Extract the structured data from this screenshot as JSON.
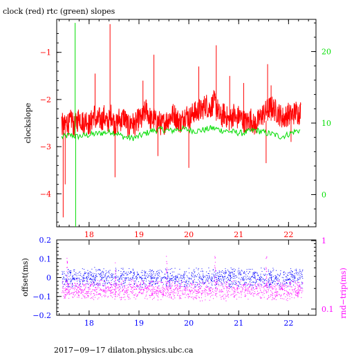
{
  "chart_data": [
    {
      "type": "line",
      "title": "clock (red) rtc (green) slopes",
      "xlabel": "",
      "ylabel": "clockslope",
      "x_ticks": [
        18,
        19,
        20,
        21,
        22
      ],
      "xlim": [
        17.35,
        22.55
      ],
      "ylim": [
        -4.7,
        -0.3
      ],
      "y_ticks": [
        -1,
        -2,
        -3,
        -4
      ],
      "y2lim": [
        -4.5,
        24.5
      ],
      "y2_ticks": [
        0,
        10,
        20
      ],
      "series": [
        {
          "name": "clock",
          "color": "#ff0000",
          "axis": "left",
          "x": [
            17.45,
            17.5,
            17.55,
            17.6,
            17.65,
            17.7,
            17.75,
            17.8,
            17.85,
            17.9,
            17.95,
            18.0,
            18.05,
            18.1,
            18.15,
            18.2,
            18.25,
            18.3,
            18.35,
            18.4,
            18.45,
            18.5,
            18.55,
            18.6,
            18.65,
            18.7,
            18.75,
            18.8,
            18.85,
            18.9,
            18.95,
            19.0,
            19.05,
            19.1,
            19.15,
            19.2,
            19.25,
            19.3,
            19.35,
            19.4,
            19.45,
            19.5,
            19.55,
            19.6,
            19.65,
            19.7,
            19.75,
            19.8,
            19.85,
            19.9,
            19.95,
            20.0,
            20.05,
            20.1,
            20.15,
            20.2,
            20.25,
            20.3,
            20.35,
            20.4,
            20.45,
            20.5,
            20.55,
            20.6,
            20.65,
            20.7,
            20.75,
            20.8,
            20.85,
            20.9,
            20.95,
            21.0,
            21.05,
            21.1,
            21.15,
            21.2,
            21.25,
            21.3,
            21.35,
            21.4,
            21.45,
            21.5,
            21.55,
            21.6,
            21.65,
            21.7,
            21.75,
            21.8,
            21.85,
            21.9,
            21.95,
            22.0,
            22.05,
            22.1,
            22.15,
            22.2,
            22.25
          ],
          "values": [
            -2.5,
            -2.6,
            -2.45,
            -2.55,
            -2.4,
            -2.6,
            -2.5,
            -2.35,
            -2.45,
            -2.5,
            -2.4,
            -2.55,
            -2.45,
            -2.3,
            -2.5,
            -2.4,
            -2.45,
            -2.35,
            -2.5,
            -2.45,
            -2.3,
            -2.5,
            -2.55,
            -2.4,
            -2.45,
            -2.35,
            -2.5,
            -2.6,
            -2.45,
            -2.55,
            -2.5,
            -2.4,
            -2.45,
            -2.3,
            -2.2,
            -2.35,
            -2.45,
            -2.4,
            -2.5,
            -2.45,
            -2.55,
            -2.5,
            -2.45,
            -2.4,
            -2.35,
            -2.3,
            -2.4,
            -2.45,
            -2.5,
            -2.35,
            -2.3,
            -2.4,
            -2.35,
            -2.25,
            -2.3,
            -2.2,
            -2.25,
            -2.15,
            -2.1,
            -2.2,
            -2.15,
            -2.05,
            -2.1,
            -2.3,
            -2.4,
            -2.3,
            -2.35,
            -2.45,
            -2.4,
            -2.3,
            -2.45,
            -2.35,
            -2.4,
            -2.45,
            -2.5,
            -2.45,
            -2.4,
            -2.55,
            -2.5,
            -2.45,
            -2.35,
            -2.3,
            -2.25,
            -2.2,
            -2.15,
            -2.2,
            -2.25,
            -2.3,
            -2.35,
            -2.4,
            -2.35,
            -2.3,
            -2.35,
            -2.3,
            -2.25,
            -2.3,
            -2.25
          ],
          "spikes": [
            {
              "x": 17.48,
              "y": -4.5
            },
            {
              "x": 17.52,
              "y": -3.8
            },
            {
              "x": 18.12,
              "y": -1.45
            },
            {
              "x": 18.42,
              "y": -0.4
            },
            {
              "x": 18.52,
              "y": -3.65
            },
            {
              "x": 19.08,
              "y": -1.6
            },
            {
              "x": 19.3,
              "y": -1.05
            },
            {
              "x": 19.38,
              "y": -3.2
            },
            {
              "x": 20.0,
              "y": -3.45
            },
            {
              "x": 20.2,
              "y": -1.3
            },
            {
              "x": 20.55,
              "y": -0.85
            },
            {
              "x": 20.82,
              "y": -1.5
            },
            {
              "x": 21.1,
              "y": -1.65
            },
            {
              "x": 21.55,
              "y": -3.35
            },
            {
              "x": 21.58,
              "y": -1.25
            },
            {
              "x": 21.65,
              "y": -1.7
            },
            {
              "x": 22.05,
              "y": -2.9
            }
          ]
        },
        {
          "name": "rtc",
          "color": "#00dd00",
          "axis": "right",
          "x": [
            17.45,
            17.55,
            17.65,
            17.75,
            17.85,
            17.95,
            18.05,
            18.15,
            18.25,
            18.35,
            18.45,
            18.55,
            18.65,
            18.75,
            18.85,
            18.95,
            19.05,
            19.15,
            19.25,
            19.35,
            19.45,
            19.55,
            19.65,
            19.75,
            19.85,
            19.95,
            20.05,
            20.15,
            20.25,
            20.35,
            20.45,
            20.55,
            20.65,
            20.75,
            20.85,
            20.95,
            21.05,
            21.15,
            21.25,
            21.35,
            21.45,
            21.55,
            21.65,
            21.75,
            21.85,
            21.95,
            22.05,
            22.15,
            22.25
          ],
          "values": [
            8.0,
            8.2,
            8.3,
            8.1,
            8.2,
            8.3,
            8.4,
            8.5,
            8.6,
            8.7,
            8.8,
            8.6,
            8.2,
            8.0,
            7.9,
            8.0,
            8.3,
            8.6,
            8.9,
            9.0,
            9.1,
            9.0,
            8.9,
            9.1,
            9.2,
            9.1,
            9.0,
            8.9,
            9.0,
            9.1,
            9.3,
            9.2,
            9.0,
            8.9,
            8.8,
            8.7,
            8.6,
            8.7,
            8.9,
            9.0,
            8.8,
            8.6,
            8.5,
            8.3,
            8.1,
            8.3,
            8.6,
            8.9,
            9.0
          ],
          "spikes": [
            {
              "x": 17.72,
              "y": 24.0
            },
            {
              "x": 17.73,
              "y": -4.5
            }
          ]
        }
      ]
    },
    {
      "type": "scatter",
      "title": "",
      "xlabel": "",
      "ylabel": "offset(ms)",
      "y2label": "rnd−trip(ms)",
      "x_ticks": [
        18,
        19,
        20,
        21,
        22
      ],
      "xlim": [
        17.35,
        22.55
      ],
      "ylim": [
        -0.2,
        0.2
      ],
      "y_ticks": [
        0.2,
        0.1,
        0,
        -0.1,
        -0.2
      ],
      "y2_ticks": [
        1,
        0.1
      ],
      "y2_scale": "log",
      "series": [
        {
          "name": "offset",
          "color": "#0000ff",
          "band_center": 0.0,
          "band_halfwidth": 0.045
        },
        {
          "name": "rnd-trip",
          "color": "#ff00ff",
          "band_center": -0.065,
          "band_halfwidth": 0.045,
          "spikes_x": [
            17.55,
            18.52,
            19.55,
            20.52,
            21.55
          ]
        }
      ]
    }
  ],
  "footer": "2017−09−17  dilaton.physics.ubc.ca",
  "colors": {
    "axis": "#000000",
    "left_ticks_top": "#ff0000",
    "right_ticks_top": "#00dd00",
    "x_ticks_top": "#ff0000",
    "left_ticks_bottom": "#0000ff",
    "right_ticks_bottom": "#ff00ff",
    "x_ticks_bottom": "#0000ff"
  }
}
